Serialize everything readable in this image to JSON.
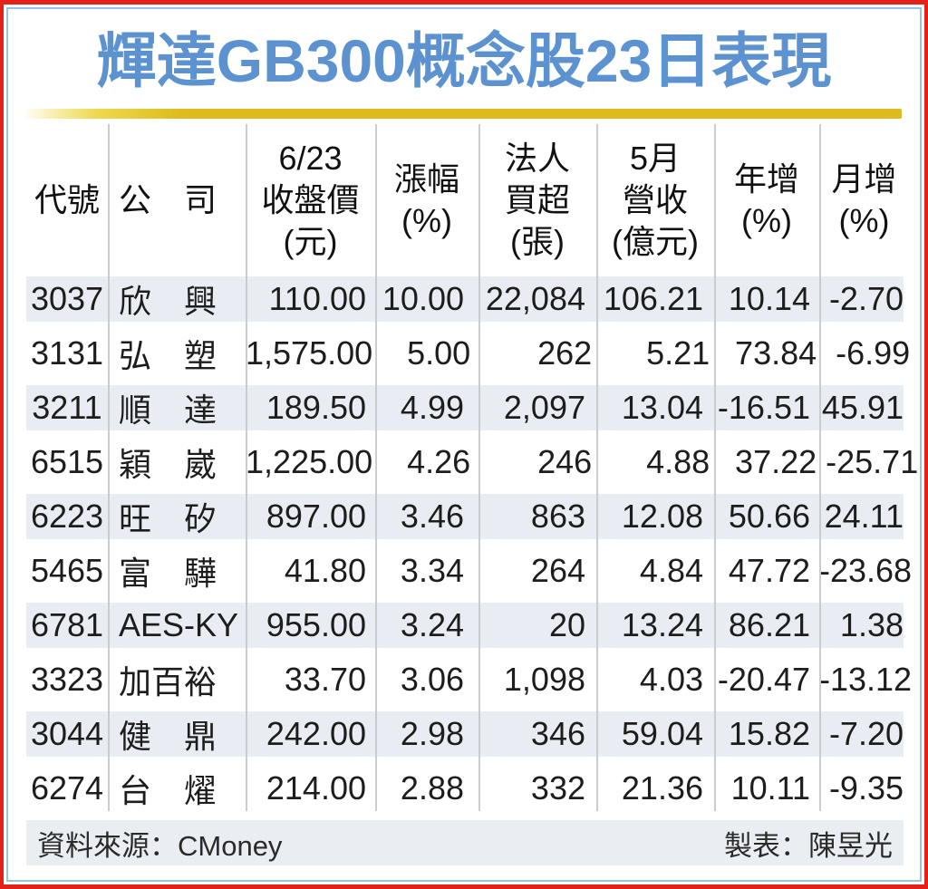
{
  "title": "輝達GB300概念股23日表現",
  "colors": {
    "border_red": "#e52019",
    "border_blue": "#99c2e0",
    "title_blue": "#5b92cf",
    "gold_bar": "#ddbb1a",
    "row_shade": "#e9edf3",
    "footer_bg": "#eaedf1"
  },
  "table": {
    "headers": [
      "代號",
      "公　司",
      "6/23\n收盤價\n(元)",
      "漲幅\n(%)",
      "法人\n買超\n(張)",
      "5月\n營收\n(億元)",
      "年增\n(%)",
      "月增\n(%)"
    ],
    "rows": [
      [
        "3037",
        "欣　興",
        "110.00",
        "10.00",
        "22,084",
        "106.21",
        "10.14",
        "-2.70"
      ],
      [
        "3131",
        "弘　塑",
        "1,575.00",
        "5.00",
        "262",
        "5.21",
        "73.84",
        "-6.99"
      ],
      [
        "3211",
        "順　達",
        "189.50",
        "4.99",
        "2,097",
        "13.04",
        "-16.51",
        "45.91"
      ],
      [
        "6515",
        "穎　崴",
        "1,225.00",
        "4.26",
        "246",
        "4.88",
        "37.22",
        "-25.71"
      ],
      [
        "6223",
        "旺　矽",
        "897.00",
        "3.46",
        "863",
        "12.08",
        "50.66",
        "24.11"
      ],
      [
        "5465",
        "富　驊",
        "41.80",
        "3.34",
        "264",
        "4.84",
        "47.72",
        "-23.68"
      ],
      [
        "6781",
        "AES-KY",
        "955.00",
        "3.24",
        "20",
        "13.24",
        "86.21",
        "1.38"
      ],
      [
        "3323",
        "加百裕",
        "33.70",
        "3.06",
        "1,098",
        "4.03",
        "-20.47",
        "-13.12"
      ],
      [
        "3044",
        "健　鼎",
        "242.00",
        "2.98",
        "346",
        "59.04",
        "15.82",
        "-7.20"
      ],
      [
        "6274",
        "台　燿",
        "214.00",
        "2.88",
        "332",
        "21.36",
        "10.11",
        "-9.35"
      ]
    ]
  },
  "footer": {
    "source": "資料來源：CMoney",
    "credit": "製表：陳昱光"
  },
  "chart_data": {
    "type": "table",
    "title": "輝達GB300概念股23日表現",
    "columns": [
      "代號",
      "公司",
      "6/23收盤價(元)",
      "漲幅(%)",
      "法人買超(張)",
      "5月營收(億元)",
      "年增(%)",
      "月增(%)"
    ],
    "rows": [
      [
        "3037",
        "欣興",
        110.0,
        10.0,
        22084,
        106.21,
        10.14,
        -2.7
      ],
      [
        "3131",
        "弘塑",
        1575.0,
        5.0,
        262,
        5.21,
        73.84,
        -6.99
      ],
      [
        "3211",
        "順達",
        189.5,
        4.99,
        2097,
        13.04,
        -16.51,
        45.91
      ],
      [
        "6515",
        "穎崴",
        1225.0,
        4.26,
        246,
        4.88,
        37.22,
        -25.71
      ],
      [
        "6223",
        "旺矽",
        897.0,
        3.46,
        863,
        12.08,
        50.66,
        24.11
      ],
      [
        "5465",
        "富驊",
        41.8,
        3.34,
        264,
        4.84,
        47.72,
        -23.68
      ],
      [
        "6781",
        "AES-KY",
        955.0,
        3.24,
        20,
        13.24,
        86.21,
        1.38
      ],
      [
        "3323",
        "加百裕",
        33.7,
        3.06,
        1098,
        4.03,
        -20.47,
        -13.12
      ],
      [
        "3044",
        "健鼎",
        242.0,
        2.98,
        346,
        59.04,
        15.82,
        -7.2
      ],
      [
        "6274",
        "台燿",
        214.0,
        2.88,
        332,
        21.36,
        10.11,
        -9.35
      ]
    ],
    "source": "CMoney",
    "credit": "陳昱光"
  }
}
